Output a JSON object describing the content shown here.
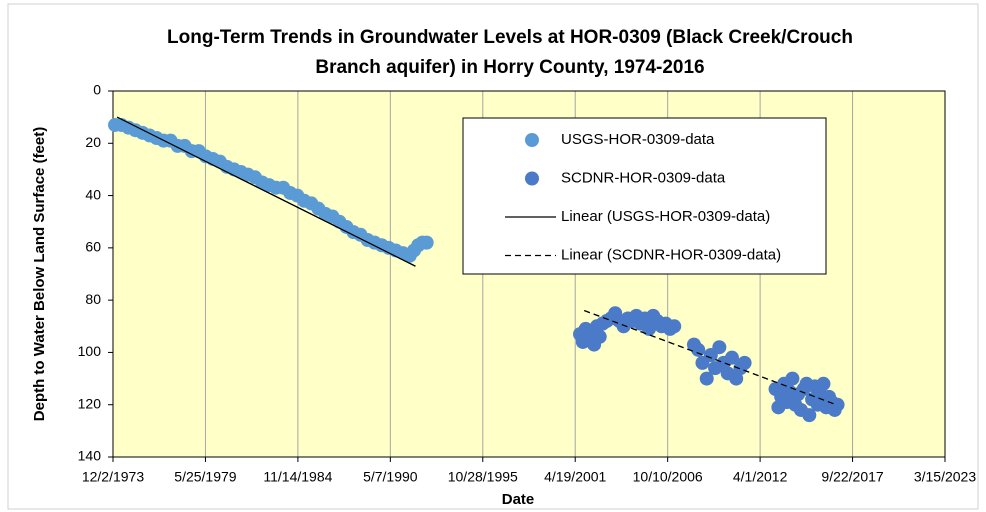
{
  "chart_data": {
    "type": "scatter",
    "title": [
      "Long-Term Trends in Groundwater Levels at HOR-0309 (Black Creek/Crouch",
      "Branch aquifer) in Horry County, 1974-2016"
    ],
    "x_label": "Date",
    "y_label": "Depth to Water Below Land Surface (feet)",
    "ylim": [
      0,
      140
    ],
    "yticks": [
      0,
      20,
      40,
      60,
      80,
      100,
      120,
      140
    ],
    "y_inverted": true,
    "xlim": [
      "12/2/1973",
      "3/15/2023"
    ],
    "xticks": [
      "12/2/1973",
      "5/25/1979",
      "11/14/1984",
      "5/7/1990",
      "10/28/1995",
      "4/19/2001",
      "10/10/2006",
      "4/1/2012",
      "9/22/2017",
      "3/15/2023"
    ],
    "grid": "x",
    "plot_background": "#ffffc8",
    "series": [
      {
        "name": "USGS-HOR-0309-data",
        "mode": "markers",
        "color": "#5b9bd5",
        "x": [
          "1/15/1974",
          "6/1/1974",
          "11/1/1974",
          "4/1/1975",
          "9/1/1975",
          "2/1/1976",
          "7/1/1976",
          "12/1/1976",
          "5/1/1977",
          "10/1/1977",
          "3/1/1978",
          "8/1/1978",
          "1/1/1979",
          "6/1/1979",
          "11/1/1979",
          "4/1/1980",
          "9/1/1980",
          "2/1/1981",
          "7/1/1981",
          "12/1/1981",
          "5/1/1982",
          "10/1/1982",
          "3/1/1983",
          "8/1/1983",
          "1/1/1984",
          "6/1/1984",
          "11/1/1984",
          "4/1/1985",
          "9/1/1985",
          "2/1/1986",
          "7/1/1986",
          "12/1/1986",
          "5/1/1987",
          "10/1/1987",
          "3/1/1988",
          "8/1/1988",
          "1/1/1989",
          "6/1/1989",
          "11/1/1989",
          "4/1/1990",
          "9/1/1990",
          "2/1/1991",
          "7/1/1991",
          "10/1/1991",
          "1/1/1992",
          "4/1/1992",
          "7/1/1992"
        ],
        "values": [
          13,
          13,
          14,
          15,
          16,
          17,
          18,
          19,
          19,
          21,
          21,
          23,
          23,
          25,
          26,
          27,
          29,
          30,
          31,
          32,
          33,
          35,
          36,
          37,
          37,
          39,
          40,
          42,
          43,
          45,
          47,
          48,
          50,
          52,
          54,
          55,
          57,
          58,
          59,
          60,
          61,
          62,
          63,
          61,
          59,
          58,
          58
        ]
      },
      {
        "name": "SCDNR-HOR-0309-data",
        "mode": "markers",
        "color": "#4a7ac8",
        "x": [
          "8/1/2001",
          "10/1/2001",
          "12/1/2001",
          "2/1/2002",
          "4/1/2002",
          "6/1/2002",
          "8/1/2002",
          "10/1/2002",
          "12/1/2002",
          "3/1/2003",
          "6/1/2003",
          "9/1/2003",
          "12/1/2003",
          "3/1/2004",
          "6/1/2004",
          "9/1/2004",
          "12/1/2004",
          "3/1/2005",
          "6/1/2005",
          "9/1/2005",
          "12/1/2005",
          "3/1/2006",
          "6/1/2006",
          "9/1/2006",
          "12/1/2006",
          "3/1/2007",
          "5/1/2008",
          "8/1/2008",
          "11/1/2008",
          "2/1/2009",
          "5/1/2009",
          "8/1/2009",
          "11/1/2009",
          "2/1/2010",
          "5/1/2010",
          "8/1/2010",
          "11/1/2010",
          "2/1/2011",
          "5/1/2011",
          "3/1/2013",
          "5/1/2013",
          "7/1/2013",
          "9/1/2013",
          "11/1/2013",
          "1/1/2014",
          "3/1/2014",
          "5/1/2014",
          "7/1/2014",
          "9/1/2014",
          "11/1/2014",
          "1/1/2015",
          "3/1/2015",
          "5/1/2015",
          "7/1/2015",
          "9/1/2015",
          "11/1/2015",
          "1/1/2016",
          "3/1/2016",
          "5/1/2016",
          "7/1/2016",
          "9/1/2016",
          "11/1/2016"
        ],
        "values": [
          93,
          96,
          91,
          95,
          92,
          97,
          90,
          94,
          89,
          88,
          87,
          85,
          88,
          90,
          87,
          88,
          86,
          89,
          87,
          91,
          86,
          88,
          90,
          89,
          91,
          90,
          97,
          99,
          104,
          110,
          101,
          106,
          98,
          104,
          108,
          102,
          110,
          106,
          104,
          114,
          121,
          117,
          112,
          119,
          115,
          110,
          120,
          116,
          122,
          114,
          112,
          124,
          118,
          113,
          120,
          116,
          112,
          121,
          117,
          119,
          122,
          120
        ]
      },
      {
        "name": "Linear (USGS-HOR-0309-data)",
        "mode": "line",
        "dash": "none",
        "color": "#000000",
        "x": [
          "3/1/1974",
          "11/1/1991"
        ],
        "values": [
          10,
          67
        ]
      },
      {
        "name": "Linear (SCDNR-HOR-0309-data)",
        "mode": "line",
        "dash": "6 4",
        "color": "#000000",
        "x": [
          "11/1/2001",
          "10/1/2016"
        ],
        "values": [
          84,
          120
        ]
      }
    ]
  }
}
